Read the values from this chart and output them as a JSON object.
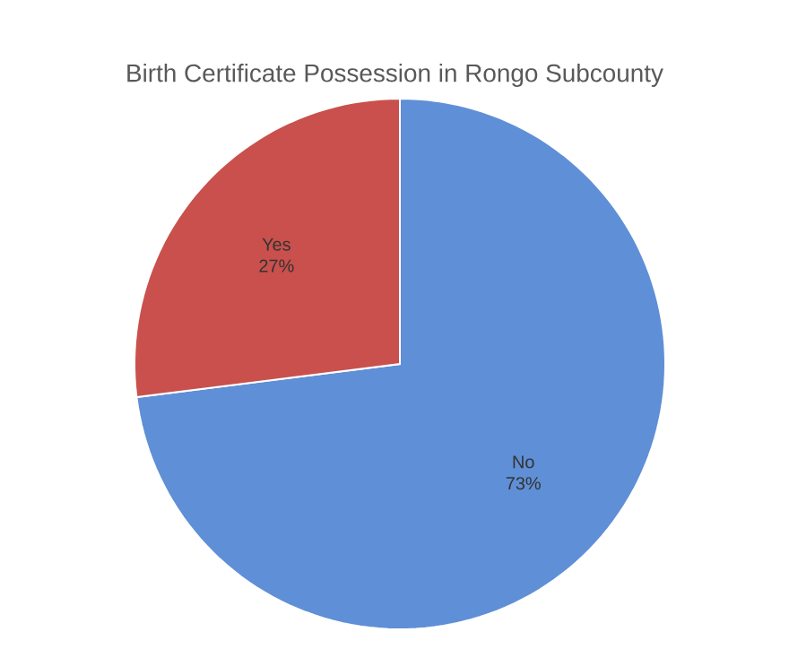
{
  "chart_data": {
    "type": "pie",
    "title": "Birth Certificate Possession in Rongo Subcounty",
    "categories": [
      "No",
      "Yes"
    ],
    "values": [
      73,
      27
    ],
    "value_labels": [
      "73%",
      "27%"
    ],
    "colors": [
      "#5f8fd6",
      "#c9504c"
    ]
  }
}
